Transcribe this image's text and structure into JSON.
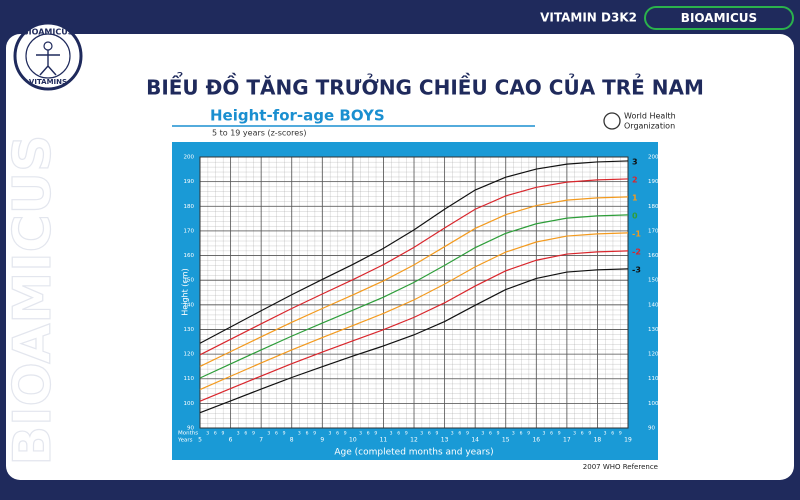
{
  "page": {
    "product": "VITAMIN D3K2",
    "brand": "BIOAMICUS",
    "logo_top": "BIOAMICUS",
    "logo_bottom": "VITAMINS",
    "heading": "BIỂU ĐỒ TĂNG TRƯỞNG CHIỀU CAO CỦA TRẺ NAM"
  },
  "chart_data": {
    "type": "line",
    "title": "Height-for-age  BOYS",
    "subtitle": "5 to 19 years (z-scores)",
    "organization": [
      "World Health",
      "Organization"
    ],
    "source": "2007 WHO Reference",
    "x_label": "Age (completed months and years)",
    "y_label": "Height (cm)",
    "month_row_label": "Months",
    "year_row_label": "Years",
    "month_labels": [
      "3",
      "6",
      "9"
    ],
    "x": [
      5,
      6,
      7,
      8,
      9,
      10,
      11,
      12,
      13,
      14,
      15,
      16,
      17,
      18,
      19
    ],
    "series": [
      {
        "name": "3",
        "color": "#111111",
        "values": [
          124.4,
          131.0,
          137.6,
          144.1,
          150.3,
          156.4,
          162.9,
          170.4,
          178.8,
          186.6,
          191.8,
          195.1,
          197.1,
          198.0,
          198.4
        ]
      },
      {
        "name": "2",
        "color": "#d9262c",
        "values": [
          119.7,
          126.0,
          132.3,
          138.5,
          144.4,
          150.2,
          156.3,
          163.3,
          171.2,
          178.8,
          184.2,
          187.7,
          189.8,
          190.7,
          191.1
        ]
      },
      {
        "name": "1",
        "color": "#f39a1e",
        "values": [
          115.0,
          121.0,
          127.0,
          132.9,
          138.5,
          144.0,
          149.7,
          156.2,
          163.6,
          171.0,
          176.6,
          180.3,
          182.5,
          183.4,
          183.8
        ]
      },
      {
        "name": "0",
        "color": "#2e9e3a",
        "values": [
          110.3,
          116.0,
          121.7,
          127.3,
          132.6,
          137.8,
          143.1,
          149.1,
          156.0,
          163.2,
          169.0,
          172.9,
          175.2,
          176.1,
          176.5
        ]
      },
      {
        "name": "-1",
        "color": "#f39a1e",
        "values": [
          105.6,
          111.0,
          116.4,
          121.7,
          126.7,
          131.6,
          136.5,
          142.0,
          148.4,
          155.4,
          161.4,
          165.5,
          167.9,
          168.8,
          169.2
        ]
      },
      {
        "name": "-2",
        "color": "#d9262c",
        "values": [
          100.9,
          106.0,
          111.1,
          116.1,
          120.8,
          125.4,
          129.9,
          134.9,
          140.8,
          147.6,
          153.8,
          158.1,
          160.6,
          161.5,
          161.9
        ]
      },
      {
        "name": "-3",
        "color": "#111111",
        "values": [
          96.2,
          101.0,
          105.8,
          110.5,
          114.9,
          119.2,
          123.3,
          127.8,
          133.2,
          139.8,
          146.2,
          150.7,
          153.3,
          154.2,
          154.6
        ]
      }
    ],
    "xlim": [
      5,
      19
    ],
    "xticks": [
      5,
      6,
      7,
      8,
      9,
      10,
      11,
      12,
      13,
      14,
      15,
      16,
      17,
      18,
      19
    ],
    "ylim": [
      90,
      200
    ],
    "yticks": [
      90,
      100,
      110,
      120,
      130,
      140,
      150,
      160,
      170,
      180,
      190,
      200
    ],
    "grid": true
  }
}
